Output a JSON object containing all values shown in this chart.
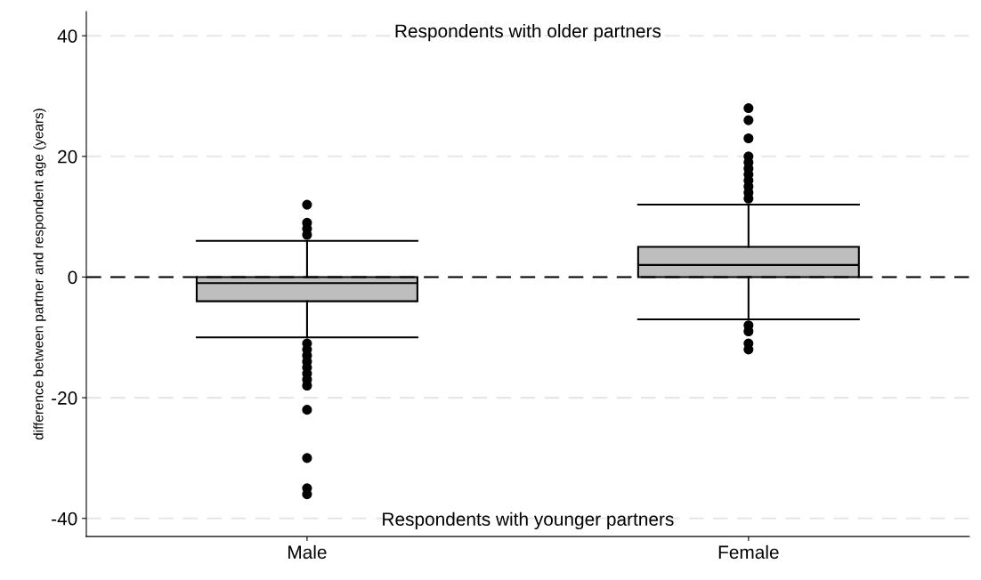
{
  "chart_data": {
    "type": "box",
    "ylabel": "difference between partner and respondent age (years)",
    "categories": [
      "Male",
      "Female"
    ],
    "boxes": [
      {
        "low": -10,
        "q1": -4,
        "median": -1,
        "q3": 0,
        "high": 6,
        "outliers": [
          12,
          9,
          8,
          7,
          -11,
          -12,
          -13,
          -14,
          -15,
          -16,
          -17,
          -18,
          -22,
          -30,
          -35,
          -36
        ]
      },
      {
        "low": -7,
        "q1": 0,
        "median": 2,
        "q3": 5,
        "high": 12,
        "outliers": [
          28,
          26,
          23,
          20,
          19,
          18,
          17,
          16,
          15,
          14,
          13,
          -8,
          -9,
          -11,
          -12
        ]
      }
    ],
    "color": "#bebebe",
    "ylim": [
      -43,
      44
    ],
    "yticks": [
      -40,
      -20,
      0,
      20,
      40
    ],
    "grid": "y",
    "ref_lines": [
      {
        "axis": "y",
        "value": 0,
        "color": "#000000",
        "line_style": "dashed"
      }
    ],
    "annotations": [
      "Respondents with older partners",
      "Respondents with younger partners"
    ]
  }
}
